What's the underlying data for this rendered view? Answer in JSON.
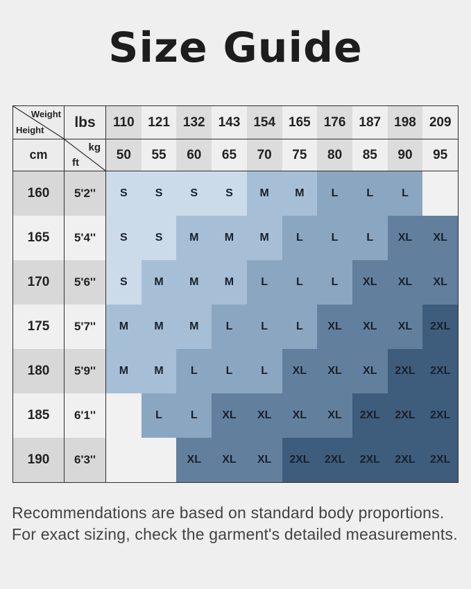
{
  "title": "Size Guide",
  "chart_data": {
    "type": "table",
    "title": "Size Guide",
    "corner": {
      "weight_label": "Weight",
      "height_label": "Height",
      "lbs_label": "lbs",
      "cm_label": "cm",
      "kg_label": "kg",
      "ft_label": "ft"
    },
    "weights_lbs": [
      "110",
      "121",
      "132",
      "143",
      "154",
      "165",
      "176",
      "187",
      "198",
      "209"
    ],
    "weights_kg": [
      "50",
      "55",
      "60",
      "65",
      "70",
      "75",
      "80",
      "85",
      "90",
      "95"
    ],
    "rows": [
      {
        "cm": "160",
        "ft": "5'2''",
        "sizes": [
          "S",
          "S",
          "S",
          "S",
          "M",
          "M",
          "L",
          "L",
          "L",
          ""
        ]
      },
      {
        "cm": "165",
        "ft": "5'4''",
        "sizes": [
          "S",
          "S",
          "M",
          "M",
          "M",
          "L",
          "L",
          "L",
          "XL",
          "XL"
        ]
      },
      {
        "cm": "170",
        "ft": "5'6''",
        "sizes": [
          "S",
          "M",
          "M",
          "M",
          "L",
          "L",
          "L",
          "XL",
          "XL",
          "XL"
        ]
      },
      {
        "cm": "175",
        "ft": "5'7''",
        "sizes": [
          "M",
          "M",
          "M",
          "L",
          "L",
          "L",
          "XL",
          "XL",
          "XL",
          "2XL"
        ]
      },
      {
        "cm": "180",
        "ft": "5'9''",
        "sizes": [
          "M",
          "M",
          "L",
          "L",
          "L",
          "XL",
          "XL",
          "XL",
          "2XL",
          "2XL"
        ]
      },
      {
        "cm": "185",
        "ft": "6'1''",
        "sizes": [
          "",
          "L",
          "L",
          "XL",
          "XL",
          "XL",
          "XL",
          "2XL",
          "2XL",
          "2XL"
        ]
      },
      {
        "cm": "190",
        "ft": "6'3''",
        "sizes": [
          "",
          "",
          "XL",
          "XL",
          "XL",
          "2XL",
          "2XL",
          "2XL",
          "2XL",
          "2XL"
        ]
      }
    ],
    "size_colors": {
      "S": "#ccdbe9",
      "M": "#a6bfd7",
      "L": "#8ba6c0",
      "XL": "#62809e",
      "2XL": "#3e5d7c",
      "empty": "#f1f1f1"
    },
    "header_col_colors": {
      "even": "#dcdcdc",
      "odd": "#efefef"
    },
    "row_header_colors": {
      "even": "#d8d8d8",
      "odd": "#f0f0f0"
    }
  },
  "footer": {
    "line1": "Recommendations are based on standard body proportions.",
    "line2": "For exact sizing, check the garment's detailed measurements."
  }
}
